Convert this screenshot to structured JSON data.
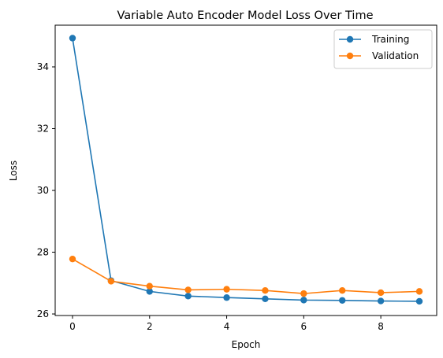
{
  "chart_data": {
    "type": "line",
    "title": "Variable Auto Encoder Model Loss Over Time",
    "xlabel": "Epoch",
    "ylabel": "Loss",
    "x": [
      0,
      1,
      2,
      3,
      4,
      5,
      6,
      7,
      8,
      9
    ],
    "xlim": [
      -0.45,
      9.45
    ],
    "ylim": [
      25.95,
      35.35
    ],
    "xticks": [
      0,
      2,
      4,
      6,
      8
    ],
    "yticks": [
      26,
      28,
      30,
      32,
      34
    ],
    "grid": false,
    "legend_position": "top-right",
    "series": [
      {
        "name": "Training",
        "color": "#1f77b4",
        "marker": "circle",
        "values": [
          34.93,
          27.08,
          26.73,
          26.58,
          26.53,
          26.49,
          26.45,
          26.44,
          26.42,
          26.41
        ]
      },
      {
        "name": "Validation",
        "color": "#ff7f0e",
        "marker": "circle",
        "values": [
          27.78,
          27.06,
          26.9,
          26.78,
          26.8,
          26.76,
          26.66,
          26.76,
          26.69,
          26.73
        ]
      }
    ]
  }
}
